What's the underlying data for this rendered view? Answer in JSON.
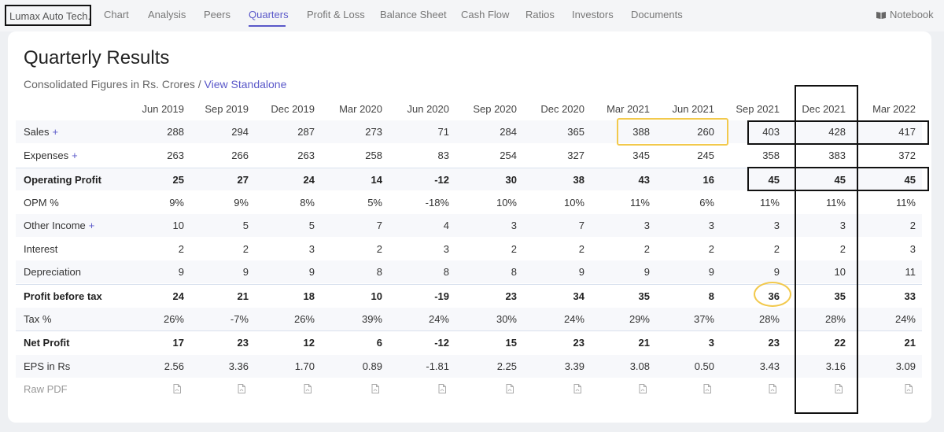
{
  "nav": {
    "brand": "Lumax Auto Tech.",
    "items": [
      "Chart",
      "Analysis",
      "Peers",
      "Quarters",
      "Profit & Loss",
      "Balance Sheet",
      "Cash Flow",
      "Ratios",
      "Investors",
      "Documents"
    ],
    "active": "Quarters",
    "notebook": "Notebook"
  },
  "header": {
    "title": "Quarterly Results",
    "subtitle": "Consolidated Figures in Rs. Crores / ",
    "standalone_link": "View Standalone"
  },
  "table": {
    "columns": [
      "Jun 2019",
      "Sep 2019",
      "Dec 2019",
      "Mar 2020",
      "Jun 2020",
      "Sep 2020",
      "Dec 2020",
      "Mar 2021",
      "Jun 2021",
      "Sep 2021",
      "Dec 2021",
      "Mar 2022"
    ],
    "rows": [
      {
        "label": "Sales",
        "expandable": true,
        "bold": false,
        "values": [
          "288",
          "294",
          "287",
          "273",
          "71",
          "284",
          "365",
          "388",
          "260",
          "403",
          "428",
          "417"
        ]
      },
      {
        "label": "Expenses",
        "expandable": true,
        "bold": false,
        "values": [
          "263",
          "266",
          "263",
          "258",
          "83",
          "254",
          "327",
          "345",
          "245",
          "358",
          "383",
          "372"
        ]
      },
      {
        "label": "Operating Profit",
        "expandable": false,
        "bold": true,
        "values": [
          "25",
          "27",
          "24",
          "14",
          "-12",
          "30",
          "38",
          "43",
          "16",
          "45",
          "45",
          "45"
        ]
      },
      {
        "label": "OPM %",
        "expandable": false,
        "bold": false,
        "values": [
          "9%",
          "9%",
          "8%",
          "5%",
          "-18%",
          "10%",
          "10%",
          "11%",
          "6%",
          "11%",
          "11%",
          "11%"
        ]
      },
      {
        "label": "Other Income",
        "expandable": true,
        "bold": false,
        "values": [
          "10",
          "5",
          "5",
          "7",
          "4",
          "3",
          "7",
          "3",
          "3",
          "3",
          "3",
          "2"
        ]
      },
      {
        "label": "Interest",
        "expandable": false,
        "bold": false,
        "values": [
          "2",
          "2",
          "3",
          "2",
          "3",
          "2",
          "2",
          "2",
          "2",
          "2",
          "2",
          "3"
        ]
      },
      {
        "label": "Depreciation",
        "expandable": false,
        "bold": false,
        "values": [
          "9",
          "9",
          "9",
          "8",
          "8",
          "8",
          "9",
          "9",
          "9",
          "9",
          "10",
          "11"
        ]
      },
      {
        "label": "Profit before tax",
        "expandable": false,
        "bold": true,
        "values": [
          "24",
          "21",
          "18",
          "10",
          "-19",
          "23",
          "34",
          "35",
          "8",
          "36",
          "35",
          "33"
        ]
      },
      {
        "label": "Tax %",
        "expandable": false,
        "bold": false,
        "values": [
          "26%",
          "-7%",
          "26%",
          "39%",
          "24%",
          "30%",
          "24%",
          "29%",
          "37%",
          "28%",
          "28%",
          "24%"
        ]
      },
      {
        "label": "Net Profit",
        "expandable": false,
        "bold": true,
        "values": [
          "17",
          "23",
          "12",
          "6",
          "-12",
          "15",
          "23",
          "21",
          "3",
          "23",
          "22",
          "21"
        ]
      },
      {
        "label": "EPS in Rs",
        "expandable": false,
        "bold": false,
        "values": [
          "2.56",
          "3.36",
          "1.70",
          "0.89",
          "-1.81",
          "2.25",
          "3.39",
          "3.08",
          "0.50",
          "3.43",
          "3.16",
          "3.09"
        ]
      }
    ],
    "raw_pdf_label": "Raw PDF",
    "plus_symbol": "+"
  },
  "colors": {
    "accent": "#5a58c9",
    "highlight_yellow": "#f2c94c",
    "annotation_black": "#111111"
  },
  "icons": {
    "notebook": "book-icon",
    "pdf": "pdf-icon"
  }
}
